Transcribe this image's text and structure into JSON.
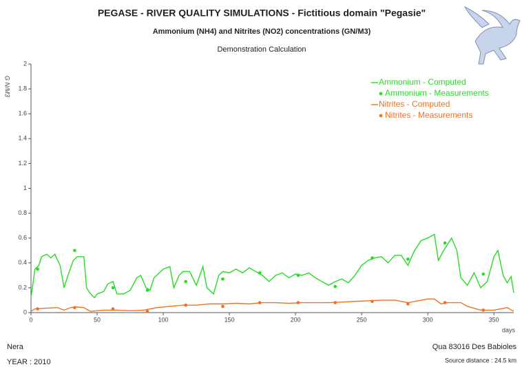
{
  "chart_data": {
    "type": "line",
    "title": "PEGASE - RIVER QUALITY SIMULATIONS - Fictitious domain \"Pegasie\"",
    "subtitle": "Ammonium (NH4) and Nitrites (NO2) concentrations  (GN/M3)",
    "subtitle2": "Demonstration Calculation",
    "y_label": "G N/M3",
    "x_label": "days",
    "footer_left": [
      "Nera",
      "YEAR : 2010"
    ],
    "footer_right": [
      "Qua 83016 Des Babioles",
      "Source distance : 24.5 km"
    ],
    "xlim": [
      0,
      365
    ],
    "xticks": [
      0,
      50,
      100,
      150,
      200,
      250,
      300,
      350
    ],
    "ylim": [
      0,
      2
    ],
    "yticks": [
      0,
      0.2,
      0.4,
      0.6,
      0.8,
      1,
      1.2,
      1.4,
      1.6,
      1.8,
      2
    ],
    "series": [
      {
        "name": "Ammonium - Computed",
        "color": "#22dd22",
        "style": "line",
        "x": [
          0,
          3,
          6,
          8,
          12,
          15,
          18,
          22,
          25,
          28,
          32,
          35,
          40,
          42,
          45,
          48,
          50,
          55,
          58,
          62,
          65,
          70,
          75,
          80,
          83,
          87,
          90,
          93,
          95,
          100,
          105,
          108,
          112,
          115,
          120,
          125,
          130,
          133,
          138,
          142,
          145,
          150,
          155,
          160,
          165,
          170,
          175,
          180,
          185,
          190,
          195,
          200,
          205,
          210,
          215,
          220,
          225,
          230,
          235,
          240,
          245,
          250,
          255,
          260,
          265,
          270,
          275,
          280,
          285,
          290,
          295,
          300,
          305,
          308,
          312,
          318,
          322,
          325,
          330,
          335,
          340,
          345,
          350,
          353,
          357,
          360,
          363,
          365
        ],
        "values": [
          0.12,
          0.35,
          0.38,
          0.45,
          0.47,
          0.44,
          0.47,
          0.38,
          0.2,
          0.3,
          0.42,
          0.45,
          0.45,
          0.2,
          0.15,
          0.12,
          0.15,
          0.17,
          0.23,
          0.25,
          0.15,
          0.15,
          0.18,
          0.28,
          0.3,
          0.2,
          0.18,
          0.28,
          0.3,
          0.35,
          0.37,
          0.2,
          0.3,
          0.33,
          0.33,
          0.22,
          0.37,
          0.2,
          0.15,
          0.3,
          0.33,
          0.32,
          0.35,
          0.32,
          0.36,
          0.33,
          0.3,
          0.25,
          0.3,
          0.32,
          0.28,
          0.31,
          0.3,
          0.32,
          0.28,
          0.25,
          0.22,
          0.25,
          0.27,
          0.24,
          0.3,
          0.38,
          0.42,
          0.44,
          0.45,
          0.4,
          0.46,
          0.46,
          0.38,
          0.5,
          0.58,
          0.6,
          0.63,
          0.42,
          0.5,
          0.6,
          0.5,
          0.28,
          0.22,
          0.32,
          0.2,
          0.25,
          0.45,
          0.5,
          0.3,
          0.24,
          0.29,
          0.16
        ]
      },
      {
        "name": "Ammonium - Measurements",
        "color": "#22dd22",
        "style": "markers",
        "x": [
          5,
          33,
          62,
          88,
          117,
          145,
          173,
          202,
          230,
          258,
          285,
          313,
          342
        ],
        "values": [
          0.35,
          0.5,
          0.2,
          0.18,
          0.25,
          0.27,
          0.32,
          0.3,
          0.21,
          0.44,
          0.43,
          0.56,
          0.31
        ]
      },
      {
        "name": "Nitrites - Computed",
        "color": "#f07020",
        "style": "line",
        "x": [
          0,
          3,
          10,
          20,
          25,
          30,
          35,
          40,
          45,
          55,
          65,
          75,
          85,
          95,
          105,
          115,
          125,
          135,
          145,
          155,
          165,
          175,
          185,
          195,
          205,
          215,
          225,
          235,
          245,
          255,
          265,
          275,
          285,
          290,
          300,
          305,
          310,
          315,
          325,
          330,
          340,
          350,
          360,
          365
        ],
        "values": [
          0.01,
          0.03,
          0.035,
          0.04,
          0.02,
          0.04,
          0.045,
          0.04,
          0.01,
          0.02,
          0.02,
          0.015,
          0.02,
          0.04,
          0.05,
          0.06,
          0.06,
          0.07,
          0.07,
          0.075,
          0.07,
          0.08,
          0.08,
          0.075,
          0.08,
          0.08,
          0.08,
          0.085,
          0.09,
          0.095,
          0.1,
          0.1,
          0.08,
          0.09,
          0.11,
          0.11,
          0.07,
          0.08,
          0.08,
          0.05,
          0.02,
          0.02,
          0.04,
          0.01
        ]
      },
      {
        "name": "Nitrites - Measurements",
        "color": "#f07020",
        "style": "markers",
        "x": [
          5,
          33,
          62,
          88,
          117,
          145,
          173,
          202,
          230,
          258,
          285,
          313,
          342
        ],
        "values": [
          0.03,
          0.04,
          0.03,
          0.01,
          0.06,
          0.05,
          0.08,
          0.08,
          0.08,
          0.09,
          0.07,
          0.08,
          0.02
        ]
      }
    ]
  }
}
